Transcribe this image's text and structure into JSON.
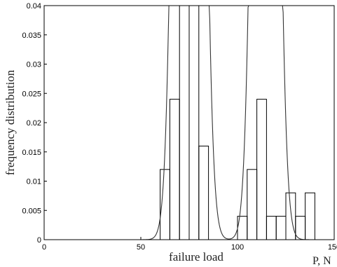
{
  "chart_data": {
    "type": "bar",
    "title": "",
    "xlabel": "failure load",
    "ylabel": "frequency distribution",
    "x_unit_label": "P, N",
    "xlim": [
      0,
      150
    ],
    "ylim": [
      0,
      0.04
    ],
    "xticks": [
      {
        "value": 0,
        "label": "0"
      },
      {
        "value": 50,
        "label": "50"
      },
      {
        "value": 100,
        "label": "100"
      },
      {
        "value": 150,
        "label": "150"
      }
    ],
    "yticks": [
      {
        "value": 0,
        "label": "0"
      },
      {
        "value": 0.005,
        "label": "0.005"
      },
      {
        "value": 0.01,
        "label": "0.01"
      },
      {
        "value": 0.015,
        "label": "0.015"
      },
      {
        "value": 0.02,
        "label": "0.02"
      },
      {
        "value": 0.025,
        "label": "0.025"
      },
      {
        "value": 0.03,
        "label": "0.03"
      },
      {
        "value": 0.035,
        "label": "0.035"
      },
      {
        "value": 0.04,
        "label": "0.04"
      }
    ],
    "histogram": {
      "bin_width": 5,
      "bins": [
        {
          "start": 60,
          "value": 0.012
        },
        {
          "start": 65,
          "value": 0.024
        },
        {
          "start": 70,
          "value": 0.04
        },
        {
          "start": 75,
          "value": 0.04
        },
        {
          "start": 80,
          "value": 0.016
        },
        {
          "start": 100,
          "value": 0.004
        },
        {
          "start": 105,
          "value": 0.012
        },
        {
          "start": 110,
          "value": 0.024
        },
        {
          "start": 115,
          "value": 0.004
        },
        {
          "start": 120,
          "value": 0.004
        },
        {
          "start": 125,
          "value": 0.008
        },
        {
          "start": 130,
          "value": 0.004
        },
        {
          "start": 135,
          "value": 0.008
        }
      ]
    },
    "fit_curve": {
      "x_range": [
        18,
        150
      ],
      "components": [
        {
          "weight": 0.4,
          "mean": 75,
          "sd": 4.9
        },
        {
          "weight": 0.275,
          "mean": 114.5,
          "sd": 4.6
        }
      ]
    },
    "grid": false,
    "legend": "none"
  }
}
